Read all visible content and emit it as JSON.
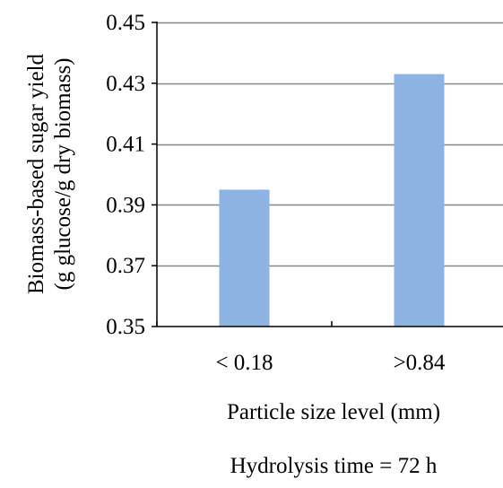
{
  "chart_data": {
    "type": "bar",
    "categories": [
      "< 0.18",
      ">0.84"
    ],
    "values": [
      0.395,
      0.433
    ],
    "xlabel": "Particle size level (mm)",
    "ylabel_lines": [
      "Biomass-based sugar yield",
      "(g glucose/g dry biomass)"
    ],
    "ylim": [
      0.35,
      0.45
    ],
    "yticks": [
      0.35,
      0.37,
      0.39,
      0.41,
      0.43,
      0.45
    ],
    "ytick_labels": [
      "0.35",
      "0.37",
      "0.39",
      "0.41",
      "0.43",
      "0.45"
    ],
    "grid": true,
    "legend": "none",
    "bar_color": "#8DB3E2",
    "gridline_color": "#868686",
    "axis_color": "#000000",
    "note": "Hydrolysis time = 72 h"
  }
}
